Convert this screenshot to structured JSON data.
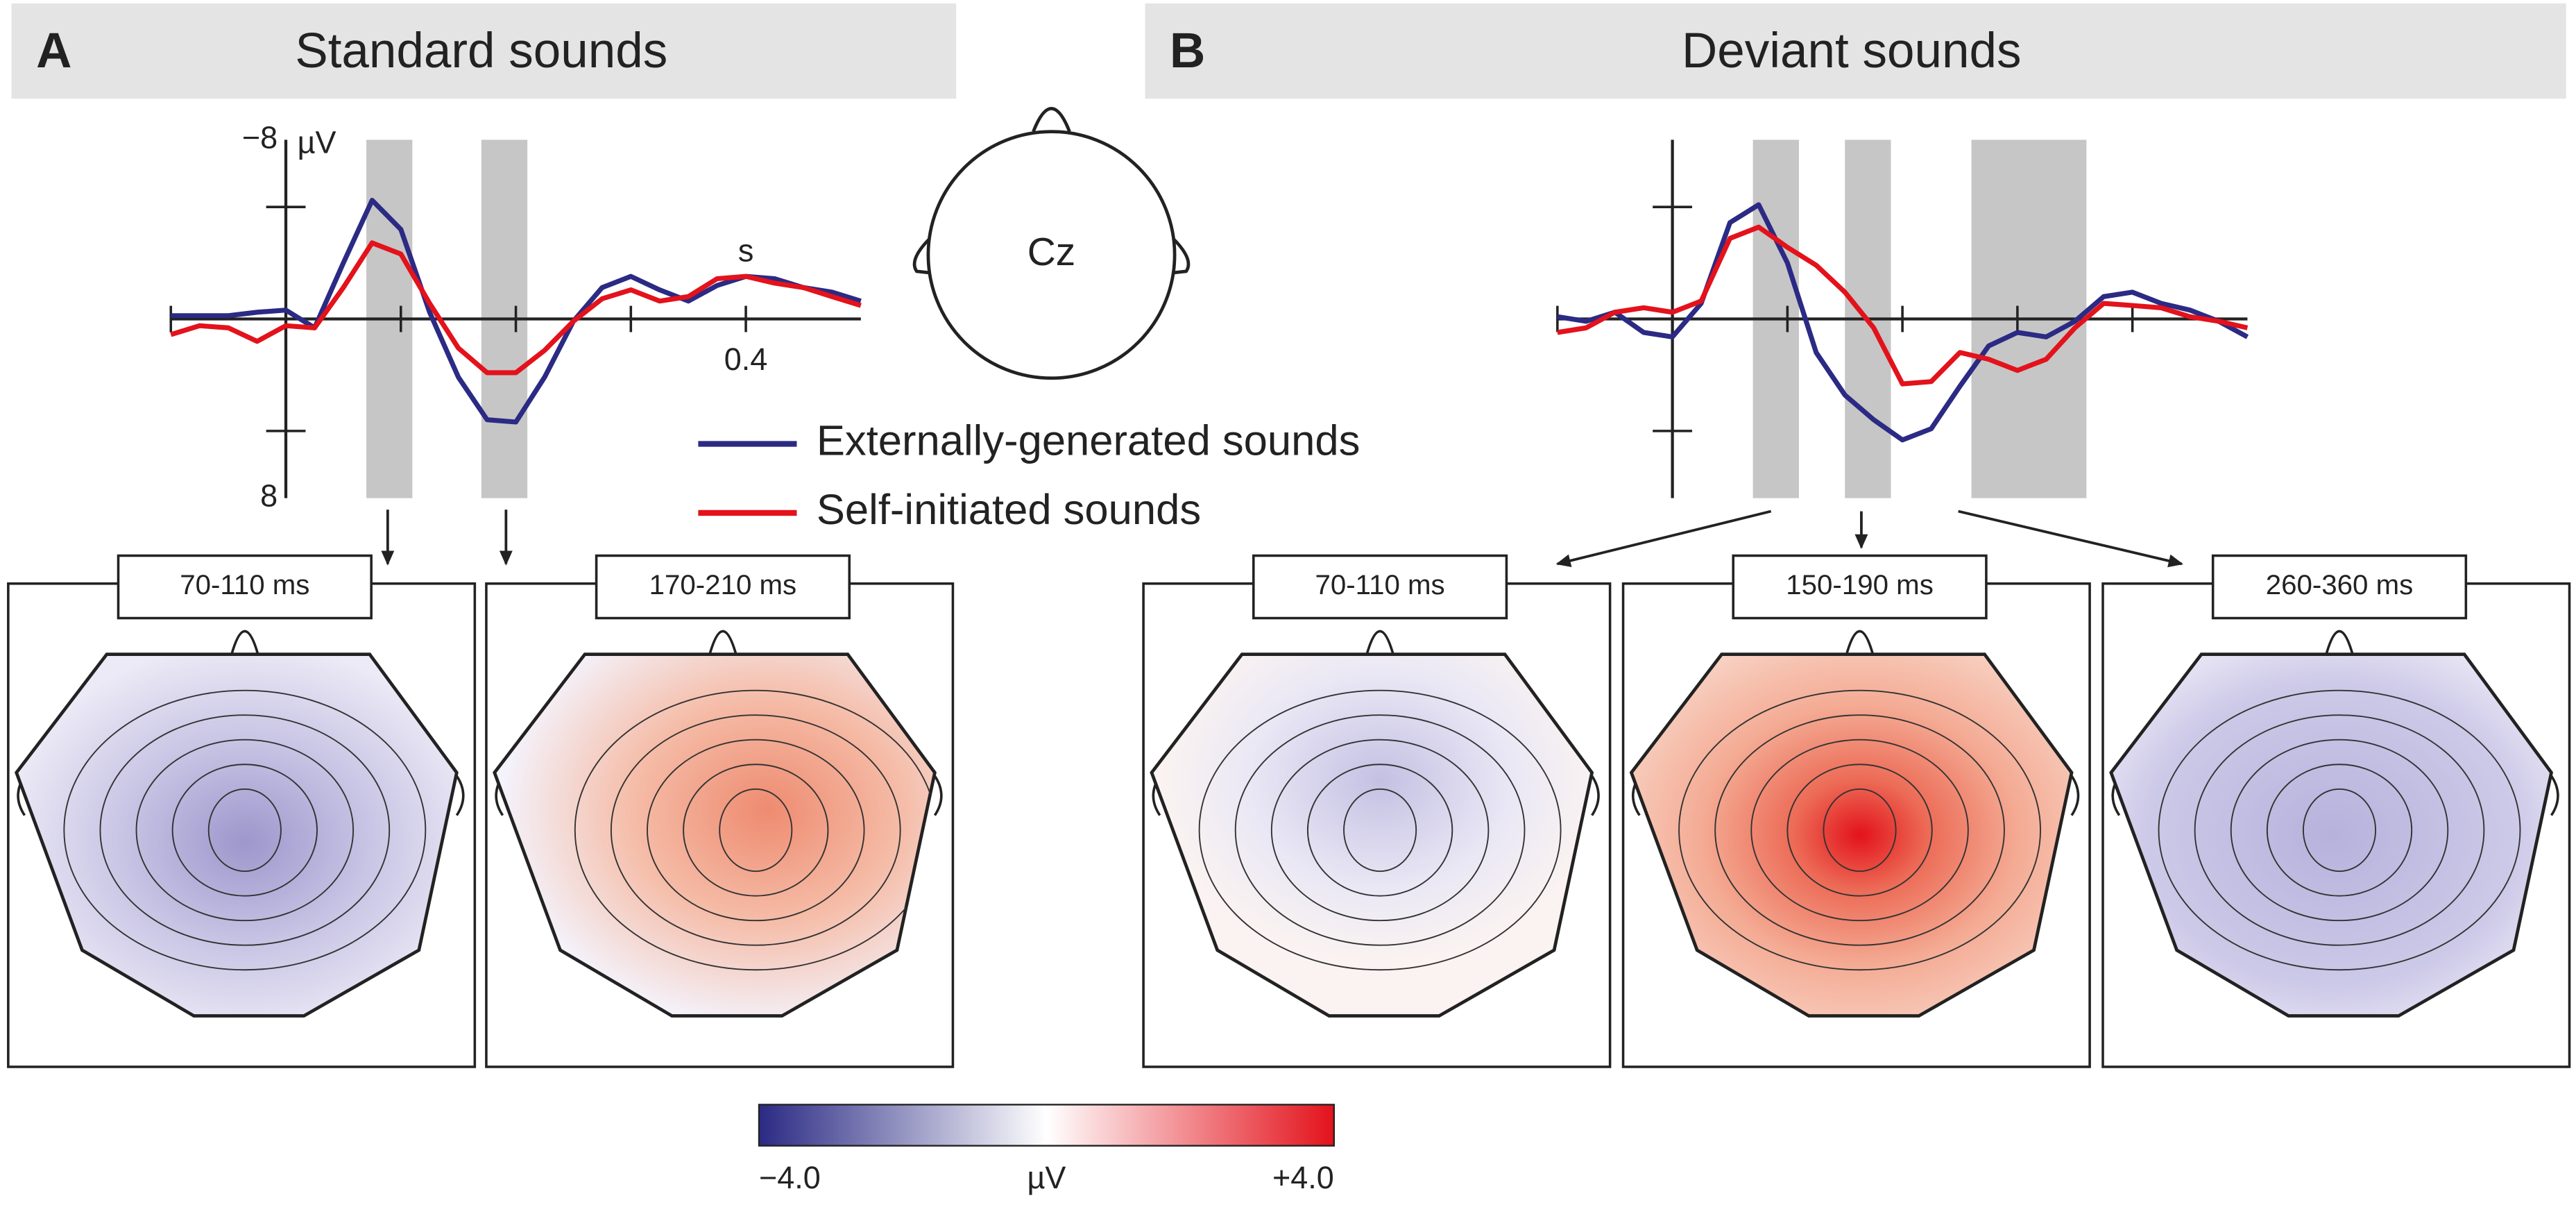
{
  "panels": [
    {
      "label": "A",
      "title": "Standard sounds",
      "topomaps": [
        "70-110 ms",
        "170-210 ms"
      ]
    },
    {
      "label": "B",
      "title": "Deviant sounds",
      "topomaps": [
        "70-110 ms",
        "150-190 ms",
        "260-360 ms"
      ]
    }
  ],
  "electrode": "Cz",
  "colorbar": {
    "unit": "µV",
    "ticks": [
      {
        "value": -4,
        "label": "−4.0"
      },
      {
        "value": 4,
        "label": "+4.0"
      }
    ]
  },
  "chart_data": [
    {
      "type": "line",
      "x_unit": "s",
      "y_unit": "µV",
      "x": [
        -0.1,
        -0.075,
        -0.05,
        -0.025,
        0,
        0.025,
        0.05,
        0.075,
        0.1,
        0.125,
        0.15,
        0.175,
        0.2,
        0.225,
        0.25,
        0.275,
        0.3,
        0.325,
        0.35,
        0.375,
        0.4,
        0.425,
        0.45,
        0.475,
        0.5
      ],
      "series": [
        {
          "name": "Externally-generated sounds",
          "color": "#2b2a84",
          "values": [
            -0.15,
            -0.15,
            -0.15,
            -0.3,
            -0.4,
            0.4,
            -2.5,
            -5.3,
            -4,
            -0.3,
            2.6,
            4.5,
            4.6,
            2.6,
            0.1,
            -1.4,
            -1.9,
            -1.3,
            -0.8,
            -1.5,
            -1.9,
            -1.8,
            -1.4,
            -1.2,
            -0.8
          ]
        },
        {
          "name": "Self-initiated sounds",
          "color": "#e3121b",
          "values": [
            0.7,
            0.3,
            0.4,
            1.0,
            0.3,
            0.4,
            -1.4,
            -3.4,
            -2.9,
            -0.7,
            1.3,
            2.4,
            2.4,
            1.4,
            0.1,
            -0.9,
            -1.3,
            -0.8,
            -1.0,
            -1.8,
            -1.9,
            -1.6,
            -1.4,
            -1.0,
            -0.6
          ]
        }
      ],
      "xlim": [
        -0.1,
        0.5
      ],
      "ylim": [
        8,
        -8
      ],
      "xticks": [
        0.4
      ],
      "xticks_minor": [
        -0.1,
        0.1,
        0.2,
        0.3
      ],
      "yticks": [
        {
          "value": -8,
          "label": "−8"
        },
        8
      ],
      "yticks_minor": [
        -5,
        5
      ],
      "windows": [
        [
          0.07,
          0.11
        ],
        [
          0.17,
          0.21
        ]
      ]
    },
    {
      "type": "line",
      "x": [
        -0.1,
        -0.075,
        -0.05,
        -0.025,
        0,
        0.025,
        0.05,
        0.075,
        0.1,
        0.125,
        0.15,
        0.175,
        0.2,
        0.225,
        0.25,
        0.275,
        0.3,
        0.325,
        0.35,
        0.375,
        0.4,
        0.425,
        0.45,
        0.475,
        0.5
      ],
      "series": [
        {
          "color": "#2b2a84",
          "values": [
            -0.1,
            0.1,
            -0.3,
            0.6,
            0.8,
            -0.7,
            -4.3,
            -5.1,
            -2.5,
            1.5,
            3.4,
            4.5,
            5.4,
            4.9,
            3.0,
            1.2,
            0.6,
            0.8,
            0.1,
            -1.0,
            -1.2,
            -0.7,
            -0.4,
            0.1,
            0.8
          ]
        },
        {
          "color": "#e3121b",
          "values": [
            0.6,
            0.4,
            -0.3,
            -0.5,
            -0.3,
            -0.8,
            -3.6,
            -4.1,
            -3.2,
            -2.4,
            -1.2,
            0.4,
            2.9,
            2.8,
            1.5,
            1.8,
            2.3,
            1.8,
            0.4,
            -0.7,
            -0.6,
            -0.5,
            -0.1,
            0.1,
            0.4
          ]
        }
      ],
      "xlim": [
        -0.1,
        0.5
      ],
      "ylim": [
        8,
        -8
      ],
      "xticks_minor": [
        -0.1,
        0.1,
        0.2,
        0.3,
        0.4
      ],
      "yticks_minor": [
        -5,
        5
      ],
      "windows": [
        [
          0.07,
          0.11
        ],
        [
          0.15,
          0.19
        ],
        [
          0.26,
          0.36
        ]
      ]
    }
  ]
}
